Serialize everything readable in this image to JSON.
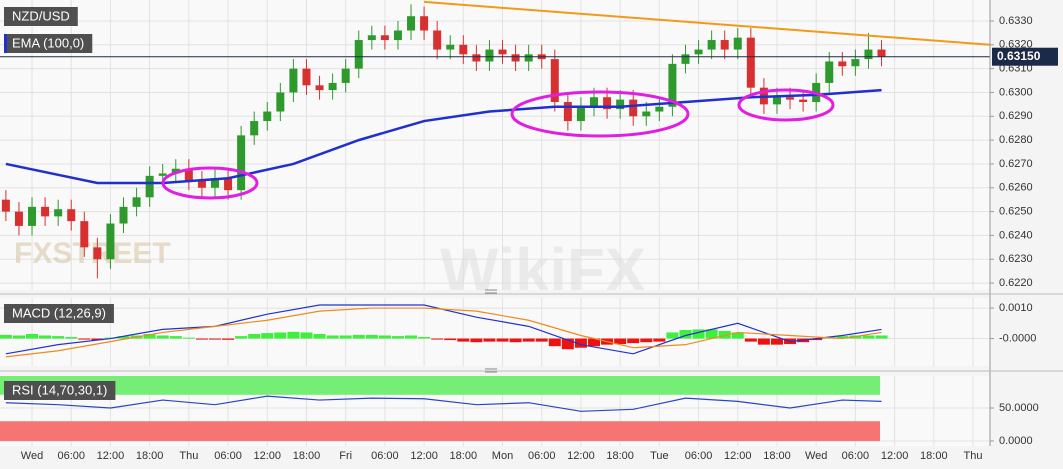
{
  "chart_data": [
    {
      "type": "candlestick",
      "label": "NZD/USD",
      "x": [
        -4,
        -2,
        0,
        2,
        4,
        6,
        8,
        10,
        12,
        14,
        16,
        18,
        20,
        22,
        24,
        26,
        28,
        30,
        32,
        34,
        36,
        38,
        40,
        42,
        44,
        46,
        48,
        50,
        52,
        54,
        56,
        58,
        60,
        62,
        64,
        66,
        68,
        70,
        72,
        74,
        76,
        78,
        80,
        82,
        84,
        86,
        88,
        90,
        92,
        94,
        96,
        98,
        100,
        102,
        104,
        106,
        108,
        110,
        112,
        114,
        116,
        118,
        120,
        122,
        124,
        126,
        128,
        130
      ],
      "open": [
        0.6255,
        0.625,
        0.6244,
        0.6252,
        0.6248,
        0.6251,
        0.6246,
        0.6235,
        0.623,
        0.6245,
        0.6252,
        0.6256,
        0.6265,
        0.6266,
        0.6268,
        0.6263,
        0.626,
        0.6264,
        0.6259,
        0.6282,
        0.6288,
        0.6292,
        0.63,
        0.631,
        0.6303,
        0.6301,
        0.6304,
        0.631,
        0.6322,
        0.6324,
        0.6322,
        0.6326,
        0.6332,
        0.6326,
        0.6318,
        0.632,
        0.6316,
        0.6313,
        0.6318,
        0.6316,
        0.6313,
        0.6316,
        0.6314,
        0.6296,
        0.6288,
        0.6294,
        0.6298,
        0.6293,
        0.6297,
        0.629,
        0.6292,
        0.6294,
        0.6312,
        0.6316,
        0.6318,
        0.6322,
        0.6318,
        0.6323,
        0.6302,
        0.6295,
        0.6298,
        0.6297,
        0.6296,
        0.6304,
        0.6313,
        0.6311,
        0.6314,
        0.6318
      ],
      "high": [
        0.6259,
        0.6254,
        0.6256,
        0.6256,
        0.6255,
        0.6255,
        0.625,
        0.6239,
        0.6249,
        0.6256,
        0.626,
        0.6269,
        0.627,
        0.6272,
        0.6272,
        0.6267,
        0.6268,
        0.6268,
        0.6286,
        0.6292,
        0.6296,
        0.6304,
        0.6314,
        0.6314,
        0.6307,
        0.6308,
        0.6314,
        0.6326,
        0.6328,
        0.6328,
        0.633,
        0.6337,
        0.6336,
        0.633,
        0.6324,
        0.6324,
        0.632,
        0.6322,
        0.6322,
        0.632,
        0.632,
        0.632,
        0.6318,
        0.63,
        0.6298,
        0.6302,
        0.6302,
        0.6301,
        0.6301,
        0.6296,
        0.6298,
        0.6316,
        0.632,
        0.6322,
        0.6326,
        0.6326,
        0.6327,
        0.6327,
        0.6306,
        0.6302,
        0.6302,
        0.6301,
        0.6308,
        0.6317,
        0.6317,
        0.6318,
        0.6325,
        0.6322
      ],
      "low": [
        0.6246,
        0.624,
        0.624,
        0.6244,
        0.6244,
        0.6242,
        0.6231,
        0.6222,
        0.6226,
        0.6241,
        0.6248,
        0.6252,
        0.6261,
        0.6262,
        0.6259,
        0.6256,
        0.6256,
        0.6255,
        0.6255,
        0.6278,
        0.6284,
        0.6288,
        0.6296,
        0.6299,
        0.6297,
        0.6297,
        0.63,
        0.6306,
        0.6318,
        0.6318,
        0.6318,
        0.6322,
        0.6322,
        0.6314,
        0.6314,
        0.6312,
        0.6309,
        0.6309,
        0.6312,
        0.6309,
        0.6309,
        0.631,
        0.6292,
        0.6284,
        0.6284,
        0.629,
        0.6289,
        0.6289,
        0.6286,
        0.6286,
        0.6288,
        0.629,
        0.6308,
        0.6312,
        0.6314,
        0.6314,
        0.6314,
        0.6298,
        0.6291,
        0.6291,
        0.6293,
        0.6292,
        0.6292,
        0.63,
        0.6307,
        0.6307,
        0.631,
        0.6311
      ],
      "close": [
        0.625,
        0.6244,
        0.6252,
        0.6248,
        0.6251,
        0.6246,
        0.6235,
        0.623,
        0.6245,
        0.6252,
        0.6256,
        0.6265,
        0.6266,
        0.6268,
        0.6263,
        0.626,
        0.6264,
        0.6259,
        0.6282,
        0.6288,
        0.6292,
        0.63,
        0.631,
        0.6303,
        0.6301,
        0.6304,
        0.631,
        0.6322,
        0.6324,
        0.6322,
        0.6326,
        0.6332,
        0.6326,
        0.6318,
        0.632,
        0.6316,
        0.6313,
        0.6318,
        0.6316,
        0.6313,
        0.6316,
        0.6314,
        0.6296,
        0.6288,
        0.6294,
        0.6298,
        0.6293,
        0.6297,
        0.629,
        0.6292,
        0.6294,
        0.6312,
        0.6316,
        0.6318,
        0.6322,
        0.6318,
        0.6323,
        0.6302,
        0.6295,
        0.6298,
        0.6297,
        0.6296,
        0.6304,
        0.6313,
        0.6311,
        0.6314,
        0.6318,
        0.6315
      ],
      "up_color": "#2e9a2e",
      "down_color": "#d83030",
      "ema": {
        "name": "EMA (100,0)",
        "color": "#1f2fd0",
        "x": [
          -4,
          10,
          20,
          30,
          40,
          50,
          60,
          70,
          80,
          90,
          100,
          110,
          120,
          130
        ],
        "values": [
          0.627,
          0.6262,
          0.6262,
          0.6264,
          0.627,
          0.628,
          0.6288,
          0.6292,
          0.6294,
          0.6294,
          0.6296,
          0.6298,
          0.6299,
          0.6301
        ]
      },
      "trendline": {
        "color": "#f29a18",
        "x": [
          60,
          146.6
        ],
        "values": [
          0.6338,
          0.632
        ]
      },
      "last_price": {
        "value": 0.6315,
        "label": "0.63150"
      },
      "watermarks": [
        "FXSTREET",
        "WikiFX"
      ],
      "xlim": [
        -4.9,
        146.6
      ],
      "ylim": [
        0.62171,
        0.63388
      ],
      "yticks": [
        {
          "value": 0.622,
          "label": "0.6220"
        },
        {
          "value": 0.623,
          "label": "0.6230"
        },
        {
          "value": 0.624,
          "label": "0.6240"
        },
        {
          "value": 0.625,
          "label": "0.6250"
        },
        {
          "value": 0.626,
          "label": "0.6260"
        },
        {
          "value": 0.627,
          "label": "0.6270"
        },
        {
          "value": 0.628,
          "label": "0.6280"
        },
        {
          "value": 0.629,
          "label": "0.6290"
        },
        {
          "value": 0.63,
          "label": "0.6300"
        },
        {
          "value": 0.631,
          "label": "0.6310"
        },
        {
          "value": 0.632,
          "label": "0.6320"
        },
        {
          "value": 0.633,
          "label": "0.6330"
        }
      ],
      "grid": true
    },
    {
      "type": "macd",
      "label": "MACD (12,26,9)",
      "histogram": {
        "x": [
          -4,
          -2,
          0,
          2,
          4,
          6,
          8,
          10,
          12,
          14,
          16,
          18,
          20,
          22,
          24,
          26,
          28,
          30,
          32,
          34,
          36,
          38,
          40,
          42,
          44,
          46,
          48,
          50,
          52,
          54,
          56,
          58,
          60,
          62,
          64,
          66,
          68,
          70,
          72,
          74,
          76,
          78,
          80,
          82,
          84,
          86,
          88,
          90,
          92,
          94,
          96,
          98,
          100,
          102,
          104,
          106,
          108,
          110,
          112,
          114,
          116,
          118,
          120,
          122,
          124,
          126,
          128,
          130
        ],
        "values": [
          0.00012,
          0.0001,
          0.00015,
          0.0001,
          8e-05,
          5e-05,
          -3e-05,
          -5e-05,
          3e-05,
          8e-05,
          0.0001,
          0.00015,
          0.0001,
          8e-05,
          3e-05,
          -3e-05,
          -2e-05,
          -4e-05,
          8e-05,
          0.00015,
          0.00018,
          0.0002,
          0.00022,
          0.0002,
          0.00015,
          0.0001,
          0.0001,
          0.00012,
          0.00012,
          0.0001,
          8e-05,
          0.0001,
          5e-05,
          -3e-05,
          -5e-05,
          -0.0001,
          -0.00012,
          -0.0001,
          -0.0001,
          -0.00012,
          -0.0001,
          -0.0001,
          -0.00025,
          -0.00035,
          -0.0003,
          -0.00025,
          -0.0002,
          -0.00018,
          -0.00015,
          -0.00012,
          -0.0001,
          0.0002,
          0.00028,
          0.0003,
          0.0003,
          0.00025,
          0.0002,
          -0.0001,
          -0.0002,
          -0.0002,
          -0.00018,
          -0.00012,
          -5e-05,
          5e-05,
          8e-05,
          0.0001,
          0.0001,
          0.0001
        ],
        "up_color": "#3cf03c",
        "down_color": "#ee1111"
      },
      "series": [
        {
          "color": "#2233cc",
          "x": [
            -4,
            4,
            12,
            20,
            28,
            36,
            44,
            52,
            60,
            68,
            76,
            84,
            92,
            100,
            108,
            116,
            124,
            130
          ],
          "values": [
            -0.0005,
            -0.0002,
            0.0,
            0.0003,
            0.0004,
            0.0008,
            0.0011,
            0.0011,
            0.0011,
            0.0007,
            0.0004,
            -0.0002,
            -0.0005,
            0.0001,
            0.0005,
            -0.0001,
            0.0001,
            0.0003
          ]
        },
        {
          "color": "#f08a1c",
          "x": [
            -4,
            4,
            12,
            20,
            28,
            36,
            44,
            52,
            60,
            68,
            76,
            84,
            92,
            100,
            108,
            116,
            124,
            130
          ],
          "values": [
            -0.0006,
            -0.0004,
            -0.0001,
            0.0002,
            0.0004,
            0.0006,
            0.0009,
            0.001,
            0.001,
            0.0009,
            0.0006,
            0.0001,
            -0.0003,
            -0.0002,
            0.0002,
            0.0001,
            0.0,
            0.0002
          ]
        }
      ],
      "xlim": [
        -4.9,
        146.6
      ],
      "ylim": [
        -0.0009,
        0.00133
      ],
      "yticks": [
        {
          "value": 0.001,
          "label": "0.0010"
        },
        {
          "value": 0,
          "label": "-0.0000"
        }
      ]
    },
    {
      "type": "rsi",
      "label": "RSI (14,70,30,1)",
      "series": [
        {
          "color": "#2a44c8",
          "x": [
            -4,
            4,
            12,
            20,
            28,
            36,
            44,
            52,
            60,
            68,
            76,
            84,
            92,
            100,
            108,
            116,
            124,
            130
          ],
          "values": [
            58,
            55,
            50,
            62,
            55,
            68,
            62,
            65,
            64,
            55,
            58,
            45,
            48,
            65,
            60,
            50,
            62,
            60
          ]
        }
      ],
      "bands": [
        {
          "from": 70,
          "to": 100,
          "color": "#74ee74"
        },
        {
          "from": 0,
          "to": 30,
          "color": "#f77474"
        }
      ],
      "xlim": [
        -4.9,
        146.6
      ],
      "ylim": [
        -7.6,
        98.5
      ],
      "yticks": [
        {
          "value": 50,
          "label": "50.0000"
        },
        {
          "value": 0,
          "label": "0.0000"
        }
      ],
      "xticks": [
        {
          "value": 0,
          "label": "Wed"
        },
        {
          "value": 6,
          "label": "06:00"
        },
        {
          "value": 12,
          "label": "12:00"
        },
        {
          "value": 18,
          "label": "18:00"
        },
        {
          "value": 24,
          "label": "Thu"
        },
        {
          "value": 30,
          "label": "06:00"
        },
        {
          "value": 36,
          "label": "12:00"
        },
        {
          "value": 42,
          "label": "18:00"
        },
        {
          "value": 48,
          "label": "Fri"
        },
        {
          "value": 54,
          "label": "06:00"
        },
        {
          "value": 60,
          "label": "12:00"
        },
        {
          "value": 66,
          "label": "18:00"
        },
        {
          "value": 72,
          "label": "Mon"
        },
        {
          "value": 78,
          "label": "06:00"
        },
        {
          "value": 84,
          "label": "12:00"
        },
        {
          "value": 90,
          "label": "18:00"
        },
        {
          "value": 96,
          "label": "Tue"
        },
        {
          "value": 102,
          "label": "06:00"
        },
        {
          "value": 108,
          "label": "12:00"
        },
        {
          "value": 114,
          "label": "18:00"
        },
        {
          "value": 120,
          "label": "Wed"
        },
        {
          "value": 126,
          "label": "06:00"
        },
        {
          "value": 132,
          "label": "12:00"
        },
        {
          "value": 138,
          "label": "18:00"
        },
        {
          "value": 144,
          "label": "Thu"
        }
      ]
    }
  ]
}
